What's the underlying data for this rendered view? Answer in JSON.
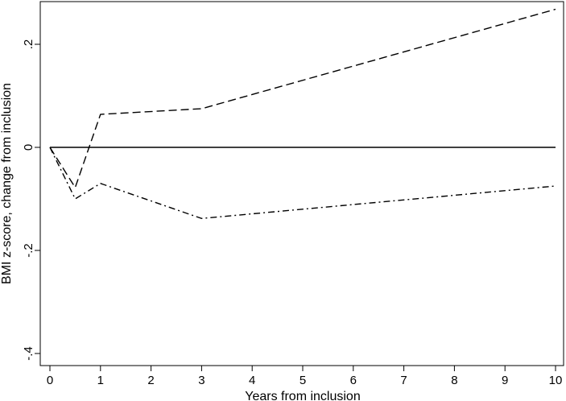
{
  "chart_data": {
    "type": "line",
    "title": "",
    "xlabel": "Years from inclusion",
    "ylabel": "BMI z-score, change from inclusion",
    "xlim": [
      0,
      10
    ],
    "ylim": [
      -0.4,
      0.27
    ],
    "x_ticks": [
      0,
      1,
      2,
      3,
      4,
      5,
      6,
      7,
      8,
      9,
      10
    ],
    "x_tick_labels": [
      "0",
      "1",
      "2",
      "3",
      "4",
      "5",
      "6",
      "7",
      "8",
      "9",
      "10"
    ],
    "y_ticks": [
      -0.4,
      -0.2,
      0,
      0.2
    ],
    "y_tick_labels": [
      "-.4",
      "-.2",
      "0",
      ".2"
    ],
    "grid": false,
    "legend": "none",
    "series": [
      {
        "style": "solid",
        "color": "#000000",
        "points": [
          [
            0,
            0
          ],
          [
            10,
            0
          ]
        ]
      },
      {
        "style": "dashed",
        "color": "#000000",
        "points": [
          [
            0,
            0
          ],
          [
            0.5,
            -0.078
          ],
          [
            1,
            0.064
          ],
          [
            3,
            0.075
          ],
          [
            10,
            0.268
          ]
        ]
      },
      {
        "style": "dash-dot",
        "color": "#000000",
        "points": [
          [
            0,
            0
          ],
          [
            0.5,
            -0.1
          ],
          [
            1,
            -0.07
          ],
          [
            3,
            -0.138
          ],
          [
            10,
            -0.075
          ]
        ]
      }
    ]
  }
}
